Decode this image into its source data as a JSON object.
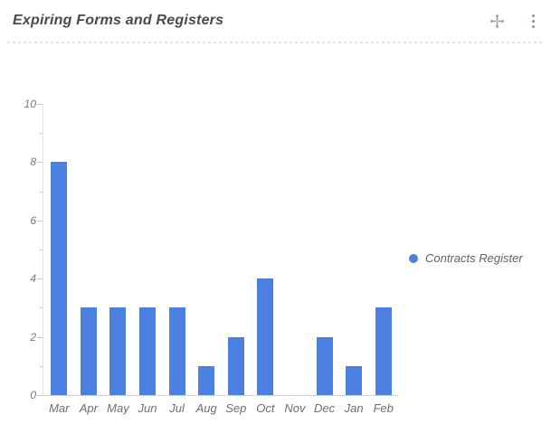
{
  "header": {
    "title": "Expiring Forms and Registers",
    "icons": {
      "move": "move-icon",
      "menu": "kebab-menu-icon"
    }
  },
  "chart_data": {
    "type": "bar",
    "title": "Expiring Forms and Registers",
    "categories": [
      "Mar",
      "Apr",
      "May",
      "Jun",
      "Jul",
      "Aug",
      "Sep",
      "Oct",
      "Nov",
      "Dec",
      "Jan",
      "Feb"
    ],
    "series": [
      {
        "name": "Contracts Register",
        "color": "#4b80e1",
        "values": [
          8,
          3,
          3,
          3,
          3,
          1,
          2,
          4,
          0,
          2,
          1,
          3
        ]
      }
    ],
    "xlabel": "",
    "ylabel": "",
    "ylim": [
      0,
      10
    ],
    "ytick_interval": 2,
    "yminor_interval": 1,
    "grid": false,
    "legend_position": "right"
  },
  "legend": {
    "label": "Contracts Register",
    "color": "#4b80e1"
  }
}
